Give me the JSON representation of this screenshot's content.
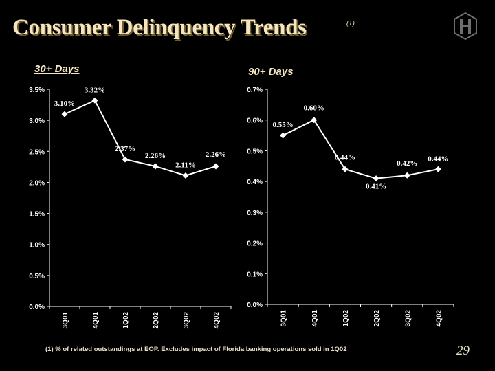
{
  "slide": {
    "title": "Consumer Delinquency Trends",
    "title_note": "(1)",
    "footnote": "(1)   % of related outstandings at EOP.  Excludes impact of Florida banking operations sold in 1Q02",
    "page_number": "29"
  },
  "colors": {
    "background": "#000000",
    "title": "#f5e6c0",
    "line": "#ffffff"
  },
  "chart_data": [
    {
      "type": "line",
      "title": "30+ Days",
      "categories": [
        "3Q01",
        "4Q01",
        "1Q02",
        "2Q02",
        "3Q02",
        "4Q02"
      ],
      "values": [
        3.1,
        3.32,
        2.37,
        2.26,
        2.11,
        2.26
      ],
      "value_labels": [
        "3.10%",
        "3.32%",
        "2.37%",
        "2.26%",
        "2.11%",
        "2.26%"
      ],
      "ylim": [
        0,
        3.5
      ],
      "yticks": [
        0,
        0.5,
        1.0,
        1.5,
        2.0,
        2.5,
        3.0,
        3.5
      ],
      "ytick_labels": [
        "0.0%",
        "0.5%",
        "1.0%",
        "1.5%",
        "2.0%",
        "2.5%",
        "3.0%",
        "3.5%"
      ],
      "grid": false,
      "marker": "diamond"
    },
    {
      "type": "line",
      "title": "90+ Days",
      "categories": [
        "3Q01",
        "4Q01",
        "1Q02",
        "2Q02",
        "3Q02",
        "4Q02"
      ],
      "values": [
        0.55,
        0.6,
        0.44,
        0.41,
        0.42,
        0.44
      ],
      "value_labels": [
        "0.55%",
        "0.60%",
        "0.44%",
        "0.41%",
        "0.42%",
        "0.44%"
      ],
      "ylim": [
        0,
        0.7
      ],
      "yticks": [
        0,
        0.1,
        0.2,
        0.3,
        0.4,
        0.5,
        0.6,
        0.7
      ],
      "ytick_labels": [
        "0.0%",
        "0.1%",
        "0.2%",
        "0.3%",
        "0.4%",
        "0.5%",
        "0.6%",
        "0.7%"
      ],
      "grid": false,
      "marker": "diamond"
    }
  ]
}
